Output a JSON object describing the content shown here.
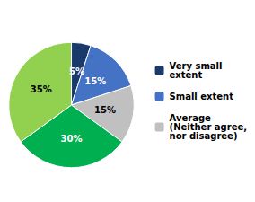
{
  "chart_data": {
    "type": "pie",
    "categories": [
      "Very small\nextent",
      "Small extent",
      "Average\n(Neither agree,\nnor disagree)",
      null,
      null
    ],
    "values": [
      5,
      15,
      15,
      30,
      35
    ],
    "value_labels": [
      "5%",
      "15%",
      "15%",
      "30%",
      "35%"
    ],
    "colors": [
      "#1a3a6b",
      "#4472c4",
      "#c0c0c0",
      "#00b050",
      "#92d050"
    ],
    "data_labels": true,
    "legend": "right"
  }
}
